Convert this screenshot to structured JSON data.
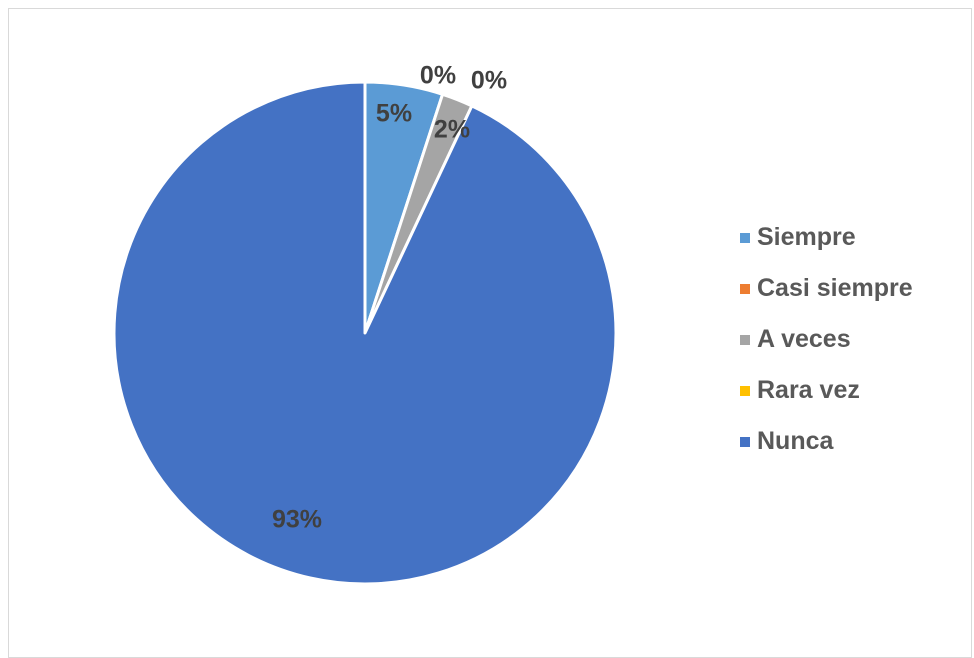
{
  "chart_data": {
    "type": "pie",
    "categories": [
      "Siempre",
      "Casi siempre",
      "A veces",
      "Rara vez",
      "Nunca"
    ],
    "values": [
      5,
      0,
      2,
      0,
      93
    ],
    "data_labels": [
      "5%",
      "0%",
      "2%",
      "0%",
      "93%"
    ],
    "colors": [
      "#5B9BD5",
      "#ED7D31",
      "#A5A5A5",
      "#FFC000",
      "#4472C4"
    ],
    "legend_position": "right"
  }
}
